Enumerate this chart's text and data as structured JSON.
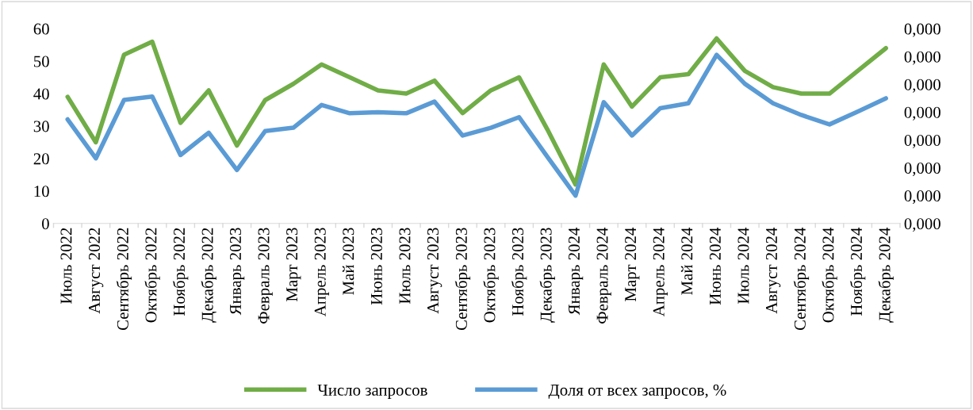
{
  "chart_data": {
    "type": "line",
    "categories": [
      "Июль 2022",
      "Август 2022",
      "Сентябрь 2022",
      "Октябрь 2022",
      "Ноябрь 2022",
      "Декабрь 2022",
      "Январь 2023",
      "Февраль 2023",
      "Март 2023",
      "Апрель 2023",
      "Май 2023",
      "Июнь 2023",
      "Июль 2023",
      "Август 2023",
      "Сентябрь 2023",
      "Октябрь 2023",
      "Ноябрь 2023",
      "Декабрь 2023",
      "Январь 2024",
      "Февраль 2024",
      "Март 2024",
      "Апрель 2024",
      "Май 2024",
      "Июнь 2024",
      "Июль 2024",
      "Август 2024",
      "Сентябрь 2024",
      "Октябрь 2024",
      "Ноябрь 2024",
      "Декабрь 2024"
    ],
    "series": [
      {
        "name": "Число запросов",
        "color": "#70ad47",
        "values": [
          39,
          25,
          52,
          56,
          31,
          41,
          24,
          38,
          43,
          49,
          45,
          41,
          40,
          44,
          34,
          41,
          45,
          29,
          12,
          49,
          36,
          45,
          46,
          57,
          47,
          42,
          40,
          40,
          47,
          54
        ]
      },
      {
        "name": "Доля от всех запросов, %",
        "color": "#5b9bd5",
        "axis": "y2",
        "values": [
          0.000187,
          0.000117,
          0.000222,
          0.000228,
          0.000123,
          0.000163,
          9.6e-05,
          0.000166,
          0.000172,
          0.000213,
          0.000198,
          0.0002,
          0.000198,
          0.000219,
          0.000158,
          0.000172,
          0.000191,
          0.00012,
          5e-05,
          0.000218,
          0.000158,
          0.000207,
          0.000216,
          0.000303,
          0.000251,
          0.000216,
          0.000195,
          0.000178,
          0.000201,
          0.000225
        ]
      }
    ],
    "ylim": [
      0,
      60
    ],
    "yticks": [
      0,
      10,
      20,
      30,
      40,
      50,
      60
    ],
    "y2lim": [
      0,
      0.00035
    ],
    "y2ticks": [
      {
        "value": 0,
        "label": "0,000"
      },
      {
        "value": 5e-05,
        "label": "0,000"
      },
      {
        "value": 0.0001,
        "label": "0,000"
      },
      {
        "value": 0.00015,
        "label": "0,000"
      },
      {
        "value": 0.0002,
        "label": "0,000"
      },
      {
        "value": 0.00025,
        "label": "0,000"
      },
      {
        "value": 0.0003,
        "label": "0,000"
      },
      {
        "value": 0.00035,
        "label": "0,000"
      }
    ],
    "legend": "bottom",
    "grid": false,
    "marker": "none",
    "line_style": "solid"
  }
}
